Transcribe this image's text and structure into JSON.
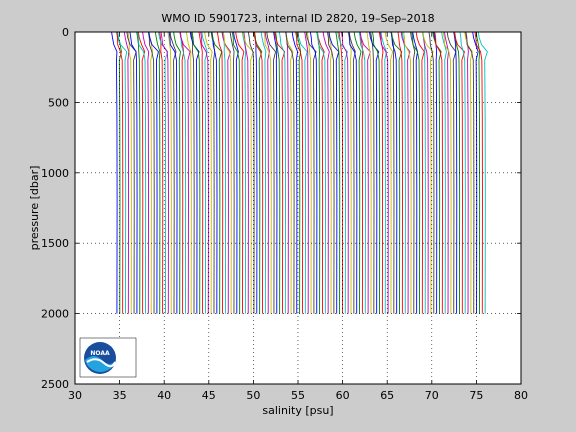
{
  "chart_data": {
    "type": "line",
    "title": "WMO ID 5901723, internal ID 2820, 19–Sep–2018",
    "xlabel": "salinity [psu]",
    "ylabel": "pressure [dbar]",
    "xlim": [
      30,
      80
    ],
    "ylim": [
      2500,
      0
    ],
    "y_reversed": true,
    "grid": "dotted",
    "xticks": [
      "30",
      "35",
      "40",
      "45",
      "50",
      "55",
      "60",
      "65",
      "70",
      "75",
      "80"
    ],
    "yticks": [
      "0",
      "500",
      "1000",
      "1500",
      "2000",
      "2500"
    ],
    "profiles": {
      "count": 130,
      "offset_step_psu": 0.32,
      "first_deep_salinity": 34.7,
      "surface_salinity": 34.1,
      "mixed_layer_pressure": 200,
      "max_pressure": 2000
    },
    "series_colors": [
      "#0000ff",
      "#008000",
      "#ff0000",
      "#00bfbf",
      "#bf00bf",
      "#bfbf00",
      "#404040"
    ]
  },
  "logo": {
    "name": "noaa-logo",
    "text": "NOAA"
  }
}
